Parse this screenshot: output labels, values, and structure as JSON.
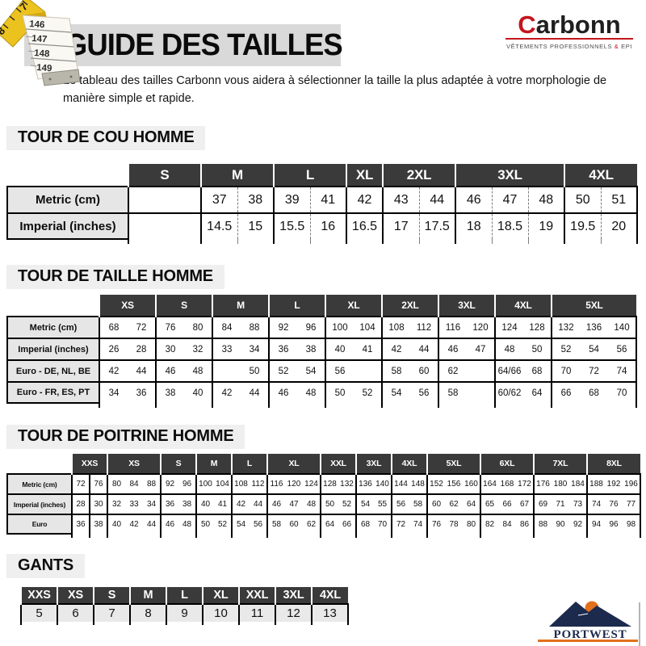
{
  "page": {
    "title": "GUIDE DES TAILLES",
    "intro": "Le tableau des tailles Carbonn vous aidera à sélectionner la taille la plus adaptée à votre morphologie de manière simple et rapide."
  },
  "brand": {
    "initial": "C",
    "rest": "arbonn",
    "tagline_pre": "VÊTEMENTS PROFESSIONNELS",
    "tagline_amp": "&",
    "tagline_post": "EPI",
    "accent_color": "#c3161c"
  },
  "tape_icon": {
    "yellow_numbers": [
      "7",
      "8"
    ],
    "tape_numbers": [
      "146",
      "147",
      "148",
      "149"
    ]
  },
  "footer_logo": {
    "text": "PORTWEST",
    "navy": "#1c2a4d",
    "orange": "#e2711d"
  },
  "colors": {
    "table_header_bg": "#3a3a3a",
    "row_label_bg": "#e6e6e6",
    "section_band_bg": "#efefef",
    "title_band_bg": "#d9d9d9"
  },
  "tables": [
    {
      "id": "cou",
      "title": "TOUR DE COU HOMME",
      "groups": [
        {
          "label": "S",
          "cols": 1
        },
        {
          "label": "M",
          "cols": 2
        },
        {
          "label": "L",
          "cols": 2
        },
        {
          "label": "XL",
          "cols": 1
        },
        {
          "label": "2XL",
          "cols": 2
        },
        {
          "label": "3XL",
          "cols": 3
        },
        {
          "label": "4XL",
          "cols": 2
        }
      ],
      "rows": [
        {
          "label": "Metric (cm)",
          "groups": [
            [
              ""
            ],
            [
              "37",
              "38"
            ],
            [
              "39",
              "41"
            ],
            [
              "42"
            ],
            [
              "43",
              "44"
            ],
            [
              "46",
              "47",
              "48"
            ],
            [
              "50",
              "51"
            ]
          ]
        },
        {
          "label": "Imperial (inches)",
          "groups": [
            [
              ""
            ],
            [
              "14.5",
              "15"
            ],
            [
              "15.5",
              "16"
            ],
            [
              "16.5"
            ],
            [
              "17",
              "17.5"
            ],
            [
              "18",
              "18.5",
              "19"
            ],
            [
              "19.5",
              "20"
            ]
          ]
        }
      ]
    },
    {
      "id": "taille",
      "title": "TOUR DE TAILLE HOMME",
      "groups": [
        {
          "label": "XS",
          "cols": 2
        },
        {
          "label": "S",
          "cols": 2
        },
        {
          "label": "M",
          "cols": 2
        },
        {
          "label": "L",
          "cols": 2
        },
        {
          "label": "XL",
          "cols": 2
        },
        {
          "label": "2XL",
          "cols": 2
        },
        {
          "label": "3XL",
          "cols": 2
        },
        {
          "label": "4XL",
          "cols": 2
        },
        {
          "label": "5XL",
          "cols": 3
        }
      ],
      "rows": [
        {
          "label": "Metric (cm)",
          "groups": [
            [
              "68",
              "72"
            ],
            [
              "76",
              "80"
            ],
            [
              "84",
              "88"
            ],
            [
              "92",
              "96"
            ],
            [
              "100",
              "104"
            ],
            [
              "108",
              "112"
            ],
            [
              "116",
              "120"
            ],
            [
              "124",
              "128"
            ],
            [
              "132",
              "136",
              "140"
            ]
          ]
        },
        {
          "label": "Imperial (inches)",
          "groups": [
            [
              "26",
              "28"
            ],
            [
              "30",
              "32"
            ],
            [
              "33",
              "34"
            ],
            [
              "36",
              "38"
            ],
            [
              "40",
              "41"
            ],
            [
              "42",
              "44"
            ],
            [
              "46",
              "47"
            ],
            [
              "48",
              "50"
            ],
            [
              "52",
              "54",
              "56"
            ]
          ]
        },
        {
          "label": "Euro - DE, NL, BE",
          "groups": [
            [
              "42",
              "44"
            ],
            [
              "46",
              "48"
            ],
            [
              "",
              "50"
            ],
            [
              "52",
              "54"
            ],
            [
              "56",
              ""
            ],
            [
              "58",
              "60"
            ],
            [
              "62",
              ""
            ],
            [
              "64/66",
              "68"
            ],
            [
              "70",
              "72",
              "74"
            ]
          ]
        },
        {
          "label": "Euro - FR, ES, PT",
          "groups": [
            [
              "34",
              "36"
            ],
            [
              "38",
              "40"
            ],
            [
              "42",
              "44"
            ],
            [
              "46",
              "48"
            ],
            [
              "50",
              "52"
            ],
            [
              "54",
              "56"
            ],
            [
              "58",
              ""
            ],
            [
              "60/62",
              "64"
            ],
            [
              "66",
              "68",
              "70"
            ]
          ]
        }
      ]
    },
    {
      "id": "poitrine",
      "title": "TOUR DE POITRINE HOMME",
      "groups": [
        {
          "label": "XXS",
          "cols": 2,
          "divided": true
        },
        {
          "label": "XS",
          "cols": 3
        },
        {
          "label": "S",
          "cols": 2
        },
        {
          "label": "M",
          "cols": 2
        },
        {
          "label": "L",
          "cols": 2
        },
        {
          "label": "XL",
          "cols": 3
        },
        {
          "label": "XXL",
          "cols": 2
        },
        {
          "label": "3XL",
          "cols": 2
        },
        {
          "label": "4XL",
          "cols": 2
        },
        {
          "label": "5XL",
          "cols": 3
        },
        {
          "label": "6XL",
          "cols": 3
        },
        {
          "label": "7XL",
          "cols": 3
        },
        {
          "label": "8XL",
          "cols": 3
        }
      ],
      "rows": [
        {
          "label": "Metric (cm)",
          "groups": [
            [
              "72",
              "76"
            ],
            [
              "80",
              "84",
              "88"
            ],
            [
              "92",
              "96"
            ],
            [
              "100",
              "104"
            ],
            [
              "108",
              "112"
            ],
            [
              "116",
              "120",
              "124"
            ],
            [
              "128",
              "132"
            ],
            [
              "136",
              "140"
            ],
            [
              "144",
              "148"
            ],
            [
              "152",
              "156",
              "160"
            ],
            [
              "164",
              "168",
              "172"
            ],
            [
              "176",
              "180",
              "184"
            ],
            [
              "188",
              "192",
              "196"
            ]
          ]
        },
        {
          "label": "Imperial (inches)",
          "groups": [
            [
              "28",
              "30"
            ],
            [
              "32",
              "33",
              "34"
            ],
            [
              "36",
              "38"
            ],
            [
              "40",
              "41"
            ],
            [
              "42",
              "44"
            ],
            [
              "46",
              "47",
              "48"
            ],
            [
              "50",
              "52"
            ],
            [
              "54",
              "55"
            ],
            [
              "56",
              "58"
            ],
            [
              "60",
              "62",
              "64"
            ],
            [
              "65",
              "66",
              "67"
            ],
            [
              "69",
              "71",
              "73"
            ],
            [
              "74",
              "76",
              "77"
            ]
          ]
        },
        {
          "label": "Euro",
          "groups": [
            [
              "36",
              "38"
            ],
            [
              "40",
              "42",
              "44"
            ],
            [
              "46",
              "48"
            ],
            [
              "50",
              "52"
            ],
            [
              "54",
              "56"
            ],
            [
              "58",
              "60",
              "62"
            ],
            [
              "64",
              "66"
            ],
            [
              "68",
              "70"
            ],
            [
              "72",
              "74"
            ],
            [
              "76",
              "78",
              "80"
            ],
            [
              "82",
              "84",
              "86"
            ],
            [
              "88",
              "90",
              "92"
            ],
            [
              "94",
              "96",
              "98"
            ]
          ]
        }
      ]
    },
    {
      "id": "gants",
      "title": "GANTS",
      "groups": [
        {
          "label": "XXS",
          "cols": 1
        },
        {
          "label": "XS",
          "cols": 1
        },
        {
          "label": "S",
          "cols": 1
        },
        {
          "label": "M",
          "cols": 1
        },
        {
          "label": "L",
          "cols": 1
        },
        {
          "label": "XL",
          "cols": 1
        },
        {
          "label": "XXL",
          "cols": 1
        },
        {
          "label": "3XL",
          "cols": 1
        },
        {
          "label": "4XL",
          "cols": 1
        }
      ],
      "rows": [
        {
          "groups": [
            [
              "5"
            ],
            [
              "6"
            ],
            [
              "7"
            ],
            [
              "8"
            ],
            [
              "9"
            ],
            [
              "10"
            ],
            [
              "11"
            ],
            [
              "12"
            ],
            [
              "13"
            ]
          ]
        }
      ]
    }
  ]
}
